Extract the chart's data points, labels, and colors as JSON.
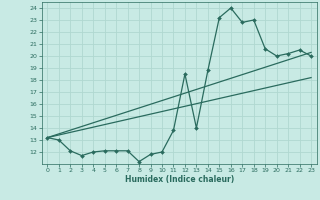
{
  "xlabel": "Humidex (Indice chaleur)",
  "bg_color": "#c8eae4",
  "line_color": "#2a6b5e",
  "grid_color": "#b0d8d0",
  "xlim": [
    -0.5,
    23.5
  ],
  "ylim": [
    11,
    24.5
  ],
  "yticks": [
    12,
    13,
    14,
    15,
    16,
    17,
    18,
    19,
    20,
    21,
    22,
    23,
    24
  ],
  "xticks": [
    0,
    1,
    2,
    3,
    4,
    5,
    6,
    7,
    8,
    9,
    10,
    11,
    12,
    13,
    14,
    15,
    16,
    17,
    18,
    19,
    20,
    21,
    22,
    23
  ],
  "line1_x": [
    0,
    1,
    2,
    3,
    4,
    5,
    6,
    7,
    8,
    9,
    10,
    11,
    12,
    13,
    14,
    15,
    16,
    17,
    18,
    19,
    20,
    21,
    22,
    23
  ],
  "line1_y": [
    13.2,
    13.0,
    12.1,
    11.7,
    12.0,
    12.1,
    12.1,
    12.1,
    11.2,
    11.8,
    12.0,
    13.8,
    18.5,
    14.0,
    18.8,
    23.2,
    24.0,
    22.8,
    23.0,
    20.6,
    20.0,
    20.2,
    20.5,
    20.0
  ],
  "line2_x": [
    0,
    23
  ],
  "line2_y": [
    13.2,
    20.3
  ],
  "line3_x": [
    0,
    23
  ],
  "line3_y": [
    13.2,
    18.2
  ]
}
